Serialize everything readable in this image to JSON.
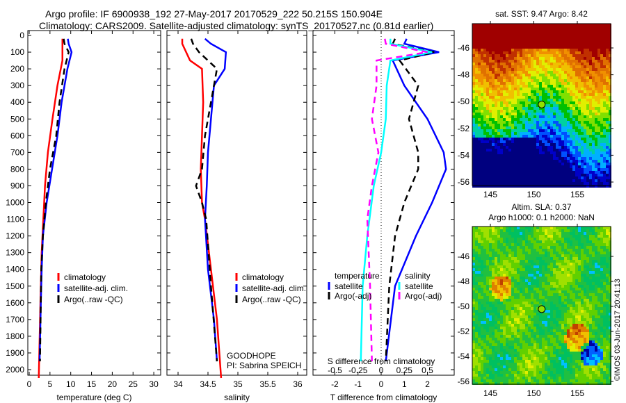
{
  "title_line1": "Argo profile: IF 6900938_192 27-May-2017 20170529_222 50.215S 150.904E",
  "title_line2": "Climatology: CARS2009. Satellite-adjusted climatology: synTS_20170527.nc (0.81d earlier)",
  "watermark": "©IMOS 03-Jun-2017 20:41:13",
  "colors": {
    "climatology": "#ff0000",
    "satellite": "#0000ff",
    "argo": "#000000",
    "s_satellite": "#00ffff",
    "s_argo": "#ff00ff"
  },
  "chart_data": [
    {
      "type": "line",
      "xlabel": "temperature (deg C)",
      "xlim": [
        -1,
        31
      ],
      "ylim": [
        0,
        2050
      ],
      "xticks": [
        "0",
        "5",
        "10",
        "15",
        "20",
        "25",
        "30"
      ],
      "yticks": [
        "0",
        "100",
        "200",
        "300",
        "400",
        "500",
        "600",
        "700",
        "800",
        "900",
        "1000",
        "1100",
        "1200",
        "1300",
        "1400",
        "1500",
        "1600",
        "1700",
        "1800",
        "1900",
        "2000"
      ],
      "legend": [
        "climatology",
        "satellite-adj. clim.",
        "Argo(..raw -QC)"
      ],
      "series": [
        {
          "name": "climatology",
          "color": "#ff0000",
          "depth": [
            20,
            50,
            150,
            300,
            500,
            700,
            900,
            1100,
            1300,
            1600,
            2050
          ],
          "values": [
            8,
            8,
            8,
            6.8,
            5.6,
            4.5,
            3.8,
            3.4,
            3.0,
            2.7,
            2.3
          ]
        },
        {
          "name": "satellite-adj. clim.",
          "color": "#0000ff",
          "depth": [
            20,
            50,
            100,
            200,
            400,
            600,
            800,
            1000,
            1200,
            1400,
            1600,
            1950
          ],
          "values": [
            9.3,
            9.5,
            10.2,
            9.2,
            7.8,
            6.8,
            5.5,
            4.2,
            3.3,
            3.0,
            2.8,
            2.5
          ]
        },
        {
          "name": "Argo(..raw -QC)",
          "color": "#000000",
          "dash": true,
          "depth": [
            20,
            50,
            100,
            200,
            400,
            600,
            800,
            1000,
            1200,
            1400,
            1950
          ],
          "values": [
            8.3,
            8.5,
            9.5,
            8.5,
            7.3,
            6.5,
            5.0,
            4.0,
            3.3,
            2.9,
            2.6
          ]
        }
      ]
    },
    {
      "type": "line",
      "xlabel": "salinity",
      "xlim": [
        33.8,
        36.1
      ],
      "ylim": [
        0,
        2050
      ],
      "xticks": [
        "34",
        "34.5",
        "35",
        "35.5",
        "36"
      ],
      "legend": [
        "climatology",
        "satellite-adj. clim.",
        "Argo(..raw -QC)"
      ],
      "annotation": [
        "GOODHOPE",
        "PI: Sabrina SPEICH"
      ],
      "series": [
        {
          "name": "climatology",
          "color": "#ff0000",
          "depth": [
            20,
            50,
            150,
            200,
            400,
            600,
            800,
            1000,
            1100,
            1400,
            1700,
            2050
          ],
          "values": [
            34.07,
            34.07,
            34.2,
            34.4,
            34.42,
            34.4,
            34.38,
            34.4,
            34.45,
            34.55,
            34.65,
            34.72
          ]
        },
        {
          "name": "satellite-adj. clim.",
          "color": "#0000ff",
          "depth": [
            20,
            50,
            100,
            200,
            300,
            500,
            700,
            900,
            1100,
            1400,
            1700,
            1950
          ],
          "values": [
            34.45,
            34.55,
            34.8,
            34.78,
            34.6,
            34.55,
            34.5,
            34.48,
            34.45,
            34.5,
            34.6,
            34.65
          ]
        },
        {
          "name": "Argo(..raw -QC)",
          "color": "#000000",
          "dash": true,
          "depth": [
            20,
            50,
            100,
            200,
            400,
            600,
            800,
            900,
            1000,
            1100,
            1500,
            1950
          ],
          "values": [
            34.22,
            34.25,
            34.35,
            34.65,
            34.55,
            34.45,
            34.4,
            34.3,
            34.4,
            34.47,
            34.55,
            34.65
          ]
        }
      ]
    },
    {
      "type": "line",
      "xlabel": "T difference from climatology",
      "x2label": "S difference from climatology",
      "xlim": [
        -3,
        3
      ],
      "ylim": [
        0,
        2050
      ],
      "xticks": [
        "-2",
        "-1",
        "0",
        "1",
        "2"
      ],
      "x2ticks": [
        "-0.5",
        "-0.25",
        "0",
        "0.25",
        "0.5"
      ],
      "legend_t_title": "temperature",
      "legend_s_title": "salinity",
      "legend": [
        "satellite",
        "Argo(-adj)",
        "satellite",
        "Argo(-adj)"
      ],
      "series": [
        {
          "name": "T satellite",
          "axis": "T",
          "color": "#0000ff",
          "depth": [
            20,
            50,
            100,
            150,
            300,
            500,
            700,
            800,
            1000,
            1200,
            1500,
            1950
          ],
          "values": [
            1.1,
            1.0,
            2.5,
            0.5,
            1.0,
            2.0,
            2.7,
            2.8,
            2.2,
            1.5,
            0.6,
            0.2
          ]
        },
        {
          "name": "T Argo(-adj)",
          "axis": "T",
          "color": "#000000",
          "dash": true,
          "depth": [
            20,
            50,
            100,
            150,
            300,
            500,
            700,
            800,
            1000,
            1200,
            1500,
            1950
          ],
          "values": [
            0.6,
            0.5,
            2.3,
            0.8,
            1.6,
            1.2,
            1.6,
            1.6,
            1.0,
            0.6,
            0.35,
            0.2
          ]
        },
        {
          "name": "S satellite",
          "axis": "S",
          "color": "#00ffff",
          "depth": [
            20,
            50,
            100,
            150,
            300,
            500,
            700,
            900,
            1200,
            1500,
            1950
          ],
          "values": [
            0.1,
            0.1,
            0.55,
            0.1,
            0.06,
            0.05,
            0.0,
            -0.08,
            -0.15,
            -0.2,
            -0.22
          ]
        },
        {
          "name": "S Argo(-adj)",
          "axis": "S",
          "color": "#ff00ff",
          "dash": true,
          "depth": [
            20,
            50,
            100,
            150,
            300,
            500,
            700,
            900,
            1100,
            1500,
            1950
          ],
          "values": [
            0.04,
            0.05,
            0.5,
            -0.05,
            -0.05,
            -0.1,
            -0.03,
            -0.1,
            -0.15,
            -0.12,
            -0.1
          ]
        }
      ]
    },
    {
      "type": "heatmap",
      "title": "sat. SST: 9.47 Argo: 8.42",
      "xticks": [
        "145",
        "150",
        "155"
      ],
      "yticks": [
        "-46",
        "-48",
        "-50",
        "-52",
        "-54",
        "-56"
      ],
      "xlim": [
        143,
        159
      ],
      "ylim": [
        -56.2,
        -44.2
      ],
      "marker": {
        "lon": 150.904,
        "lat": -50.215
      }
    },
    {
      "type": "heatmap",
      "title_line1": "Altim. SLA: 0.37",
      "title_line2": "Argo h1000: 0.1 h2000: NaN",
      "xticks": [
        "145",
        "150",
        "155"
      ],
      "yticks": [
        "-46",
        "-48",
        "-50",
        "-52",
        "-54",
        "-56"
      ],
      "xlim": [
        143,
        159
      ],
      "ylim": [
        -56.2,
        -43.8
      ],
      "marker": {
        "lon": 150.904,
        "lat": -50.215
      }
    }
  ]
}
